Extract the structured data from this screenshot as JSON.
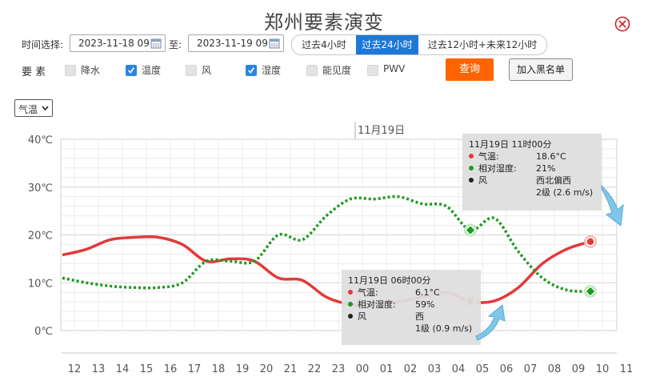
{
  "title": "郑州要素演变",
  "controls": {
    "time_label": "时间选择:",
    "start": "2023-11-18 09",
    "to_label": "至:",
    "end": "2023-11-19 09",
    "ranges": [
      "过去4小时",
      "过去24小时",
      "过去12小时+未来12小时"
    ],
    "element_label": "要 素",
    "elements": [
      {
        "label": "降水",
        "checked": false
      },
      {
        "label": "温度",
        "checked": true
      },
      {
        "label": "风",
        "checked": false
      },
      {
        "label": "湿度",
        "checked": true
      },
      {
        "label": "能见度",
        "checked": false
      },
      {
        "label": "PWV",
        "checked": false
      }
    ],
    "query": "查询",
    "blacklist": "加入黑名单",
    "select_value": "气温"
  },
  "colors": {
    "temp": "#e23a3a",
    "humidity": "#1e9b1e",
    "active": "#1e78d7",
    "query": "#ff6400"
  },
  "chart_data": {
    "type": "line",
    "date_marker": "11月19日",
    "x_ticks": [
      "12",
      "13",
      "14",
      "15",
      "16",
      "17",
      "18",
      "19",
      "20",
      "21",
      "22",
      "23",
      "00",
      "01",
      "02",
      "03",
      "04",
      "05",
      "06",
      "07",
      "08",
      "09",
      "10",
      "11"
    ],
    "y_ticks": [
      "40℃",
      "30℃",
      "20℃",
      "10℃",
      "0℃"
    ],
    "ylim": [
      0,
      40
    ],
    "series": [
      {
        "name": "气温",
        "values": [
          15.8,
          17,
          19,
          19.5,
          19.5,
          18,
          14.5,
          15,
          14.5,
          11,
          10.5,
          7,
          5.5,
          5.5,
          6,
          7,
          8,
          6.1,
          6.2,
          9,
          14,
          17,
          18.6
        ]
      },
      {
        "name": "相对湿度",
        "values": [
          11,
          10,
          9.3,
          9,
          9,
          10,
          14.5,
          14.5,
          14.5,
          20,
          19,
          24,
          27.5,
          27.5,
          28,
          26.5,
          26,
          21,
          23.5,
          16.5,
          11,
          8.5,
          8.2
        ]
      }
    ]
  },
  "tooltips": [
    {
      "header": "11月19日 11时00分",
      "temp_label": "气温:",
      "temp": "18.6°C",
      "hum_label": "相对湿度:",
      "hum": "21%",
      "wind_label": "风",
      "wind_dir": "西北偏西",
      "wind_speed": "2级 (2.6 m/s)"
    },
    {
      "header": "11月19日 06时00分",
      "temp_label": "气温:",
      "temp": "6.1°C",
      "hum_label": "相对湿度:",
      "hum": "59%",
      "wind_label": "风",
      "wind_dir": "西",
      "wind_speed": "1级 (0.9 m/s)"
    }
  ]
}
